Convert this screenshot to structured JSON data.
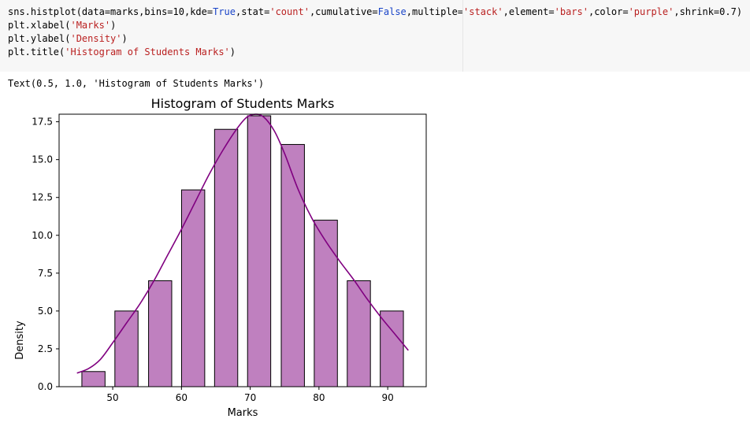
{
  "code_cell": {
    "lines": [
      [
        {
          "t": "sns.histplot(data=marks,bins=10,kde=",
          "c": ""
        },
        {
          "t": "True",
          "c": "kw"
        },
        {
          "t": ",stat=",
          "c": ""
        },
        {
          "t": "'count'",
          "c": "str"
        },
        {
          "t": ",cumulative=",
          "c": ""
        },
        {
          "t": "False",
          "c": "kw"
        },
        {
          "t": ",multiple=",
          "c": ""
        },
        {
          "t": "'stack'",
          "c": "str"
        },
        {
          "t": ",element=",
          "c": ""
        },
        {
          "t": "'bars'",
          "c": "str"
        },
        {
          "t": ",color=",
          "c": ""
        },
        {
          "t": "'purple'",
          "c": "str"
        },
        {
          "t": ",shrink=0.7)",
          "c": ""
        }
      ],
      [
        {
          "t": "plt.xlabel(",
          "c": ""
        },
        {
          "t": "'Marks'",
          "c": "str"
        },
        {
          "t": ")",
          "c": ""
        }
      ],
      [
        {
          "t": "plt.ylabel(",
          "c": ""
        },
        {
          "t": "'Density'",
          "c": "str"
        },
        {
          "t": ")",
          "c": ""
        }
      ],
      [
        {
          "t": "plt.title(",
          "c": ""
        },
        {
          "t": "'Histogram of Students Marks'",
          "c": "str"
        },
        {
          "t": ")",
          "c": ""
        }
      ]
    ]
  },
  "output": {
    "text": "Text(0.5, 1.0, 'Histogram of Students Marks')"
  },
  "colors": {
    "bar_fill": "#bf80bf",
    "bar_edge": "#000000",
    "kde_line": "#800080",
    "string": "#ba2121",
    "keyword": "#1a44c8",
    "cell_bg": "#f7f7f7"
  },
  "chart_data": {
    "type": "bar",
    "title": "Histogram of Students Marks",
    "xlabel": "Marks",
    "ylabel": "Density",
    "bin_centers": [
      47.2,
      52.0,
      56.9,
      61.7,
      66.5,
      71.3,
      76.2,
      81.0,
      85.8,
      90.6
    ],
    "values": [
      1,
      5,
      7,
      13,
      17,
      18,
      16,
      11,
      7,
      5
    ],
    "bar_width": 3.37,
    "kde": {
      "x": [
        44.8,
        46.5,
        48.2,
        50.0,
        52.0,
        54.0,
        56.0,
        58.0,
        60.0,
        62.0,
        64.0,
        66.0,
        68.0,
        69.5,
        70.8,
        72.0,
        73.5,
        75.0,
        77.0,
        79.0,
        81.0,
        83.0,
        85.0,
        87.0,
        89.0,
        91.0,
        93.0
      ],
      "y": [
        0.9,
        1.2,
        1.8,
        2.9,
        4.2,
        5.5,
        7.0,
        8.7,
        10.4,
        12.2,
        14.0,
        15.6,
        17.0,
        17.8,
        18.1,
        17.8,
        16.9,
        15.4,
        13.0,
        11.1,
        9.6,
        8.3,
        7.1,
        5.8,
        4.6,
        3.5,
        2.4
      ]
    },
    "xlim": [
      42.2,
      95.6
    ],
    "ylim": [
      0,
      18.0
    ],
    "xticks": [
      50,
      60,
      70,
      80,
      90
    ],
    "xtick_labels": [
      "50",
      "60",
      "70",
      "80",
      "90"
    ],
    "yticks": [
      0,
      2.5,
      5,
      7.5,
      10,
      12.5,
      15,
      17.5
    ],
    "ytick_labels": [
      "0.0",
      "2.5",
      "5.0",
      "7.5",
      "10.0",
      "12.5",
      "15.0",
      "17.5"
    ],
    "grid": false
  }
}
